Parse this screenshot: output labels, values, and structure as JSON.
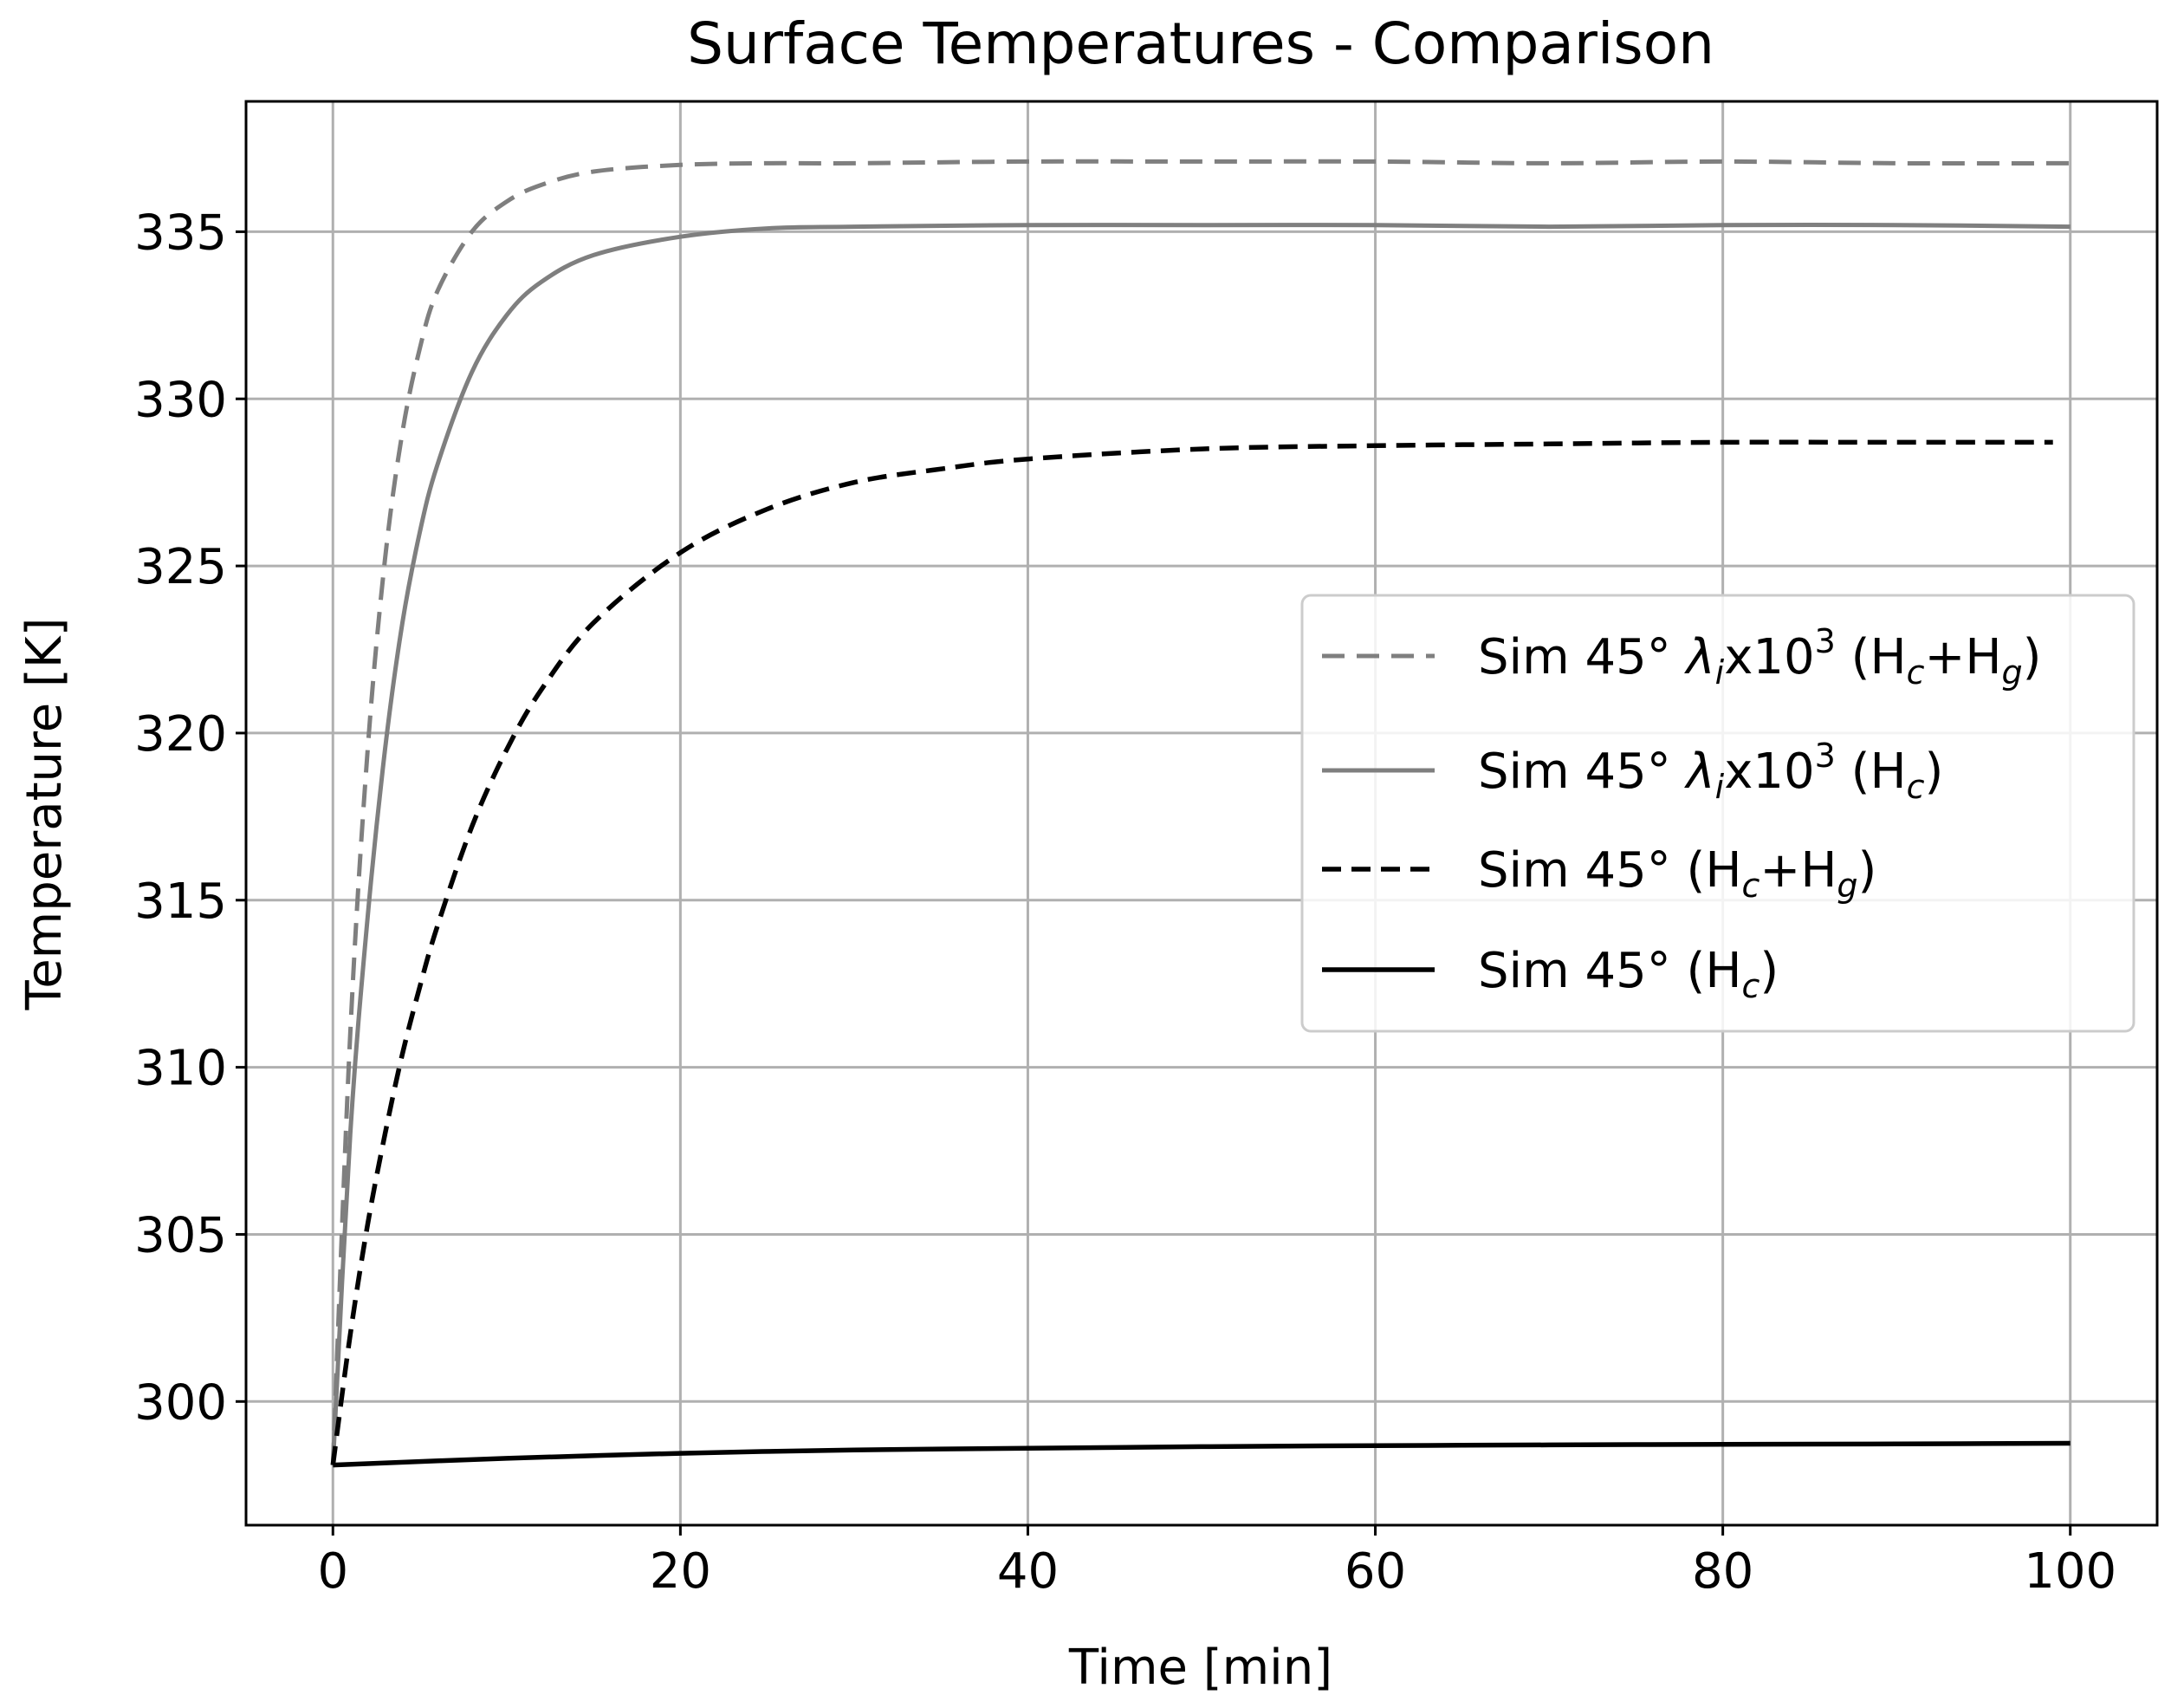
{
  "chart_data": {
    "type": "line",
    "title": "Surface Temperatures - Comparison",
    "xlabel": "Time [min]",
    "ylabel": "Temperature [K]",
    "xlim": [
      -5,
      105
    ],
    "ylim": [
      296.3,
      338.9
    ],
    "xticks": [
      0,
      20,
      40,
      60,
      80,
      100
    ],
    "yticks": [
      300,
      305,
      310,
      315,
      320,
      325,
      330,
      335
    ],
    "grid": true,
    "legend_position": "center-right",
    "series": [
      {
        "name": "Sim 45° λix10³ (Hc+Hg)",
        "legend": {
          "main": "Sim 45° ",
          "lambda": "λ",
          "lambda_sub": "i",
          "x10": "x10",
          "sup": "3",
          "open": " (H",
          "sub1": "c",
          "plus": "+H",
          "sub2": "g",
          "close": ")"
        },
        "color": "#7f7f7f",
        "style": "dashed",
        "x": [
          0,
          1,
          2,
          3,
          4,
          5,
          6,
          8,
          10,
          12,
          15,
          20,
          25,
          30,
          40,
          50,
          60,
          70,
          80,
          90,
          100
        ],
        "y": [
          298.1,
          311.0,
          319.5,
          325.2,
          329.0,
          331.5,
          333.2,
          335.0,
          335.9,
          336.4,
          336.8,
          337.0,
          337.05,
          337.05,
          337.1,
          337.1,
          337.1,
          337.05,
          337.1,
          337.05,
          337.05
        ]
      },
      {
        "name": "Sim 45° λix10³ (Hc)",
        "legend": {
          "main": "Sim 45° ",
          "lambda": "λ",
          "lambda_sub": "i",
          "x10": "x10",
          "sup": "3",
          "open": " (H",
          "sub1": "c",
          "close": ")"
        },
        "color": "#7f7f7f",
        "style": "solid",
        "x": [
          0,
          1,
          2,
          3,
          4,
          5,
          6,
          8,
          10,
          12,
          15,
          20,
          25,
          30,
          40,
          50,
          60,
          70,
          80,
          90,
          100
        ],
        "y": [
          298.1,
          308.0,
          314.5,
          319.5,
          323.3,
          326.0,
          328.0,
          330.8,
          332.5,
          333.5,
          334.3,
          334.85,
          335.1,
          335.15,
          335.2,
          335.2,
          335.2,
          335.15,
          335.2,
          335.2,
          335.15
        ]
      },
      {
        "name": "Sim 45° (Hc+Hg)",
        "legend": {
          "main": "Sim 45° ",
          "open": "(H",
          "sub1": "c",
          "plus": "+H",
          "sub2": "g",
          "close": ")"
        },
        "color": "#000000",
        "style": "dashed",
        "x": [
          0,
          1,
          2,
          3,
          4,
          5,
          6,
          8,
          10,
          12,
          15,
          20,
          25,
          30,
          35,
          40,
          50,
          60,
          70,
          80,
          90,
          99
        ],
        "y": [
          298.1,
          302.0,
          305.3,
          308.0,
          310.4,
          312.4,
          314.2,
          317.2,
          319.5,
          321.3,
          323.3,
          325.4,
          326.7,
          327.5,
          327.9,
          328.2,
          328.5,
          328.6,
          328.65,
          328.7,
          328.7,
          328.7
        ]
      },
      {
        "name": "Sim 45° (Hc)",
        "legend": {
          "main": "Sim 45° ",
          "open": "(H",
          "sub1": "c",
          "close": ")"
        },
        "color": "#000000",
        "style": "solid",
        "x": [
          0,
          10,
          20,
          30,
          40,
          50,
          60,
          70,
          80,
          90,
          100
        ],
        "y": [
          298.1,
          298.3,
          298.45,
          298.55,
          298.6,
          298.65,
          298.68,
          298.7,
          298.72,
          298.73,
          298.75
        ]
      }
    ]
  }
}
